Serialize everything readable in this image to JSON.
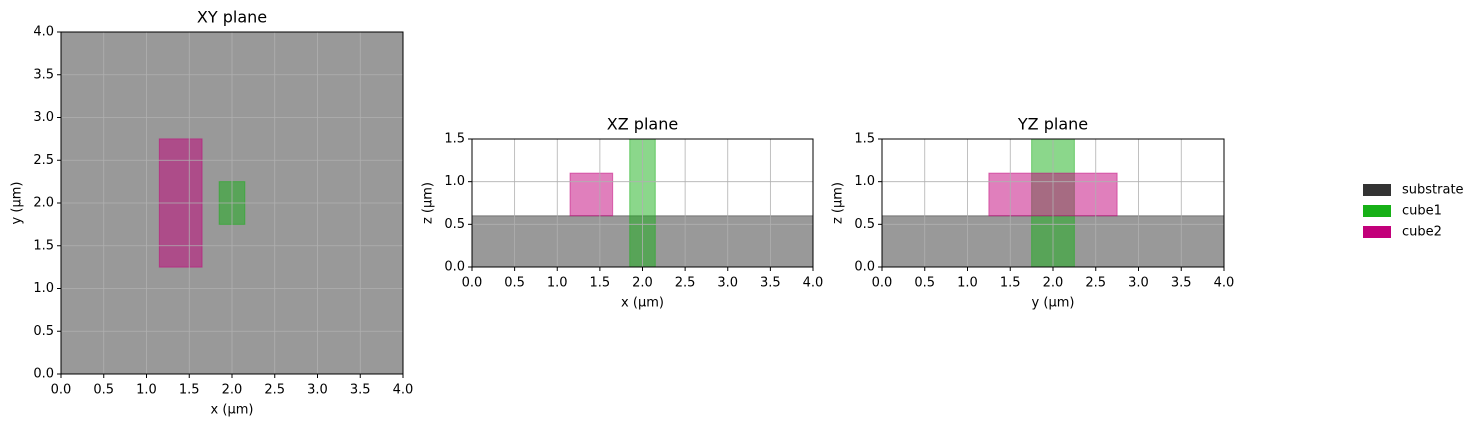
{
  "chart_data": [
    {
      "type": "shapes",
      "title": "XY plane",
      "xlabel": "x (µm)",
      "ylabel": "y (µm)",
      "grid": true,
      "xlim": [
        0,
        4
      ],
      "ylim": [
        0,
        4
      ],
      "xticks": [
        {
          "value": 0,
          "label": "0.0"
        },
        {
          "value": 0.5,
          "label": "0.5"
        },
        {
          "value": 1,
          "label": "1.0"
        },
        {
          "value": 1.5,
          "label": "1.5"
        },
        {
          "value": 2,
          "label": "2.0"
        },
        {
          "value": 2.5,
          "label": "2.5"
        },
        {
          "value": 3,
          "label": "3.0"
        },
        {
          "value": 3.5,
          "label": "3.5"
        },
        {
          "value": 4,
          "label": "4.0"
        }
      ],
      "yticks": [
        {
          "value": 0,
          "label": "0.0"
        },
        {
          "value": 0.5,
          "label": "0.5"
        },
        {
          "value": 1,
          "label": "1.0"
        },
        {
          "value": 1.5,
          "label": "1.5"
        },
        {
          "value": 2,
          "label": "2.0"
        },
        {
          "value": 2.5,
          "label": "2.5"
        },
        {
          "value": 3,
          "label": "3.0"
        },
        {
          "value": 3.5,
          "label": "3.5"
        },
        {
          "value": 4,
          "label": "4.0"
        }
      ],
      "shapes": [
        {
          "name": "substrate",
          "color": "#333333",
          "x": [
            0,
            4
          ],
          "y": [
            0,
            4
          ]
        },
        {
          "name": "cube1",
          "color": "#17b017",
          "x": [
            1.85,
            2.15
          ],
          "y": [
            1.75,
            2.25
          ]
        },
        {
          "name": "cube2",
          "color": "#c2007a",
          "x": [
            1.15,
            1.65
          ],
          "y": [
            1.25,
            2.75
          ]
        }
      ]
    },
    {
      "type": "shapes",
      "title": "XZ plane",
      "xlabel": "x (µm)",
      "ylabel": "z (µm)",
      "grid": true,
      "xlim": [
        0,
        4
      ],
      "ylim": [
        0,
        1.5
      ],
      "xticks": [
        {
          "value": 0,
          "label": "0.0"
        },
        {
          "value": 0.5,
          "label": "0.5"
        },
        {
          "value": 1,
          "label": "1.0"
        },
        {
          "value": 1.5,
          "label": "1.5"
        },
        {
          "value": 2,
          "label": "2.0"
        },
        {
          "value": 2.5,
          "label": "2.5"
        },
        {
          "value": 3,
          "label": "3.0"
        },
        {
          "value": 3.5,
          "label": "3.5"
        },
        {
          "value": 4,
          "label": "4.0"
        }
      ],
      "yticks": [
        {
          "value": 0,
          "label": "0.0"
        },
        {
          "value": 0.5,
          "label": "0.5"
        },
        {
          "value": 1,
          "label": "1.0"
        },
        {
          "value": 1.5,
          "label": "1.5"
        }
      ],
      "shapes": [
        {
          "name": "substrate",
          "color": "#333333",
          "x": [
            0,
            4
          ],
          "y": [
            0,
            0.6
          ]
        },
        {
          "name": "cube1",
          "color": "#17b017",
          "x": [
            1.85,
            2.15
          ],
          "y": [
            0,
            1.5
          ]
        },
        {
          "name": "cube2",
          "color": "#c2007a",
          "x": [
            1.15,
            1.65
          ],
          "y": [
            0.6,
            1.1
          ]
        }
      ]
    },
    {
      "type": "shapes",
      "title": "YZ plane",
      "xlabel": "y (µm)",
      "ylabel": "z (µm)",
      "grid": true,
      "xlim": [
        0,
        4
      ],
      "ylim": [
        0,
        1.5
      ],
      "xticks": [
        {
          "value": 0,
          "label": "0.0"
        },
        {
          "value": 0.5,
          "label": "0.5"
        },
        {
          "value": 1,
          "label": "1.0"
        },
        {
          "value": 1.5,
          "label": "1.5"
        },
        {
          "value": 2,
          "label": "2.0"
        },
        {
          "value": 2.5,
          "label": "2.5"
        },
        {
          "value": 3,
          "label": "3.0"
        },
        {
          "value": 3.5,
          "label": "3.5"
        },
        {
          "value": 4,
          "label": "4.0"
        }
      ],
      "yticks": [
        {
          "value": 0,
          "label": "0.0"
        },
        {
          "value": 0.5,
          "label": "0.5"
        },
        {
          "value": 1,
          "label": "1.0"
        },
        {
          "value": 1.5,
          "label": "1.5"
        }
      ],
      "shapes": [
        {
          "name": "substrate",
          "color": "#333333",
          "x": [
            0,
            4
          ],
          "y": [
            0,
            0.6
          ]
        },
        {
          "name": "cube1",
          "color": "#17b017",
          "x": [
            1.75,
            2.25
          ],
          "y": [
            0,
            1.5
          ]
        },
        {
          "name": "cube2",
          "color": "#c2007a",
          "x": [
            1.25,
            2.75
          ],
          "y": [
            0.6,
            1.1
          ]
        }
      ]
    }
  ]
}
